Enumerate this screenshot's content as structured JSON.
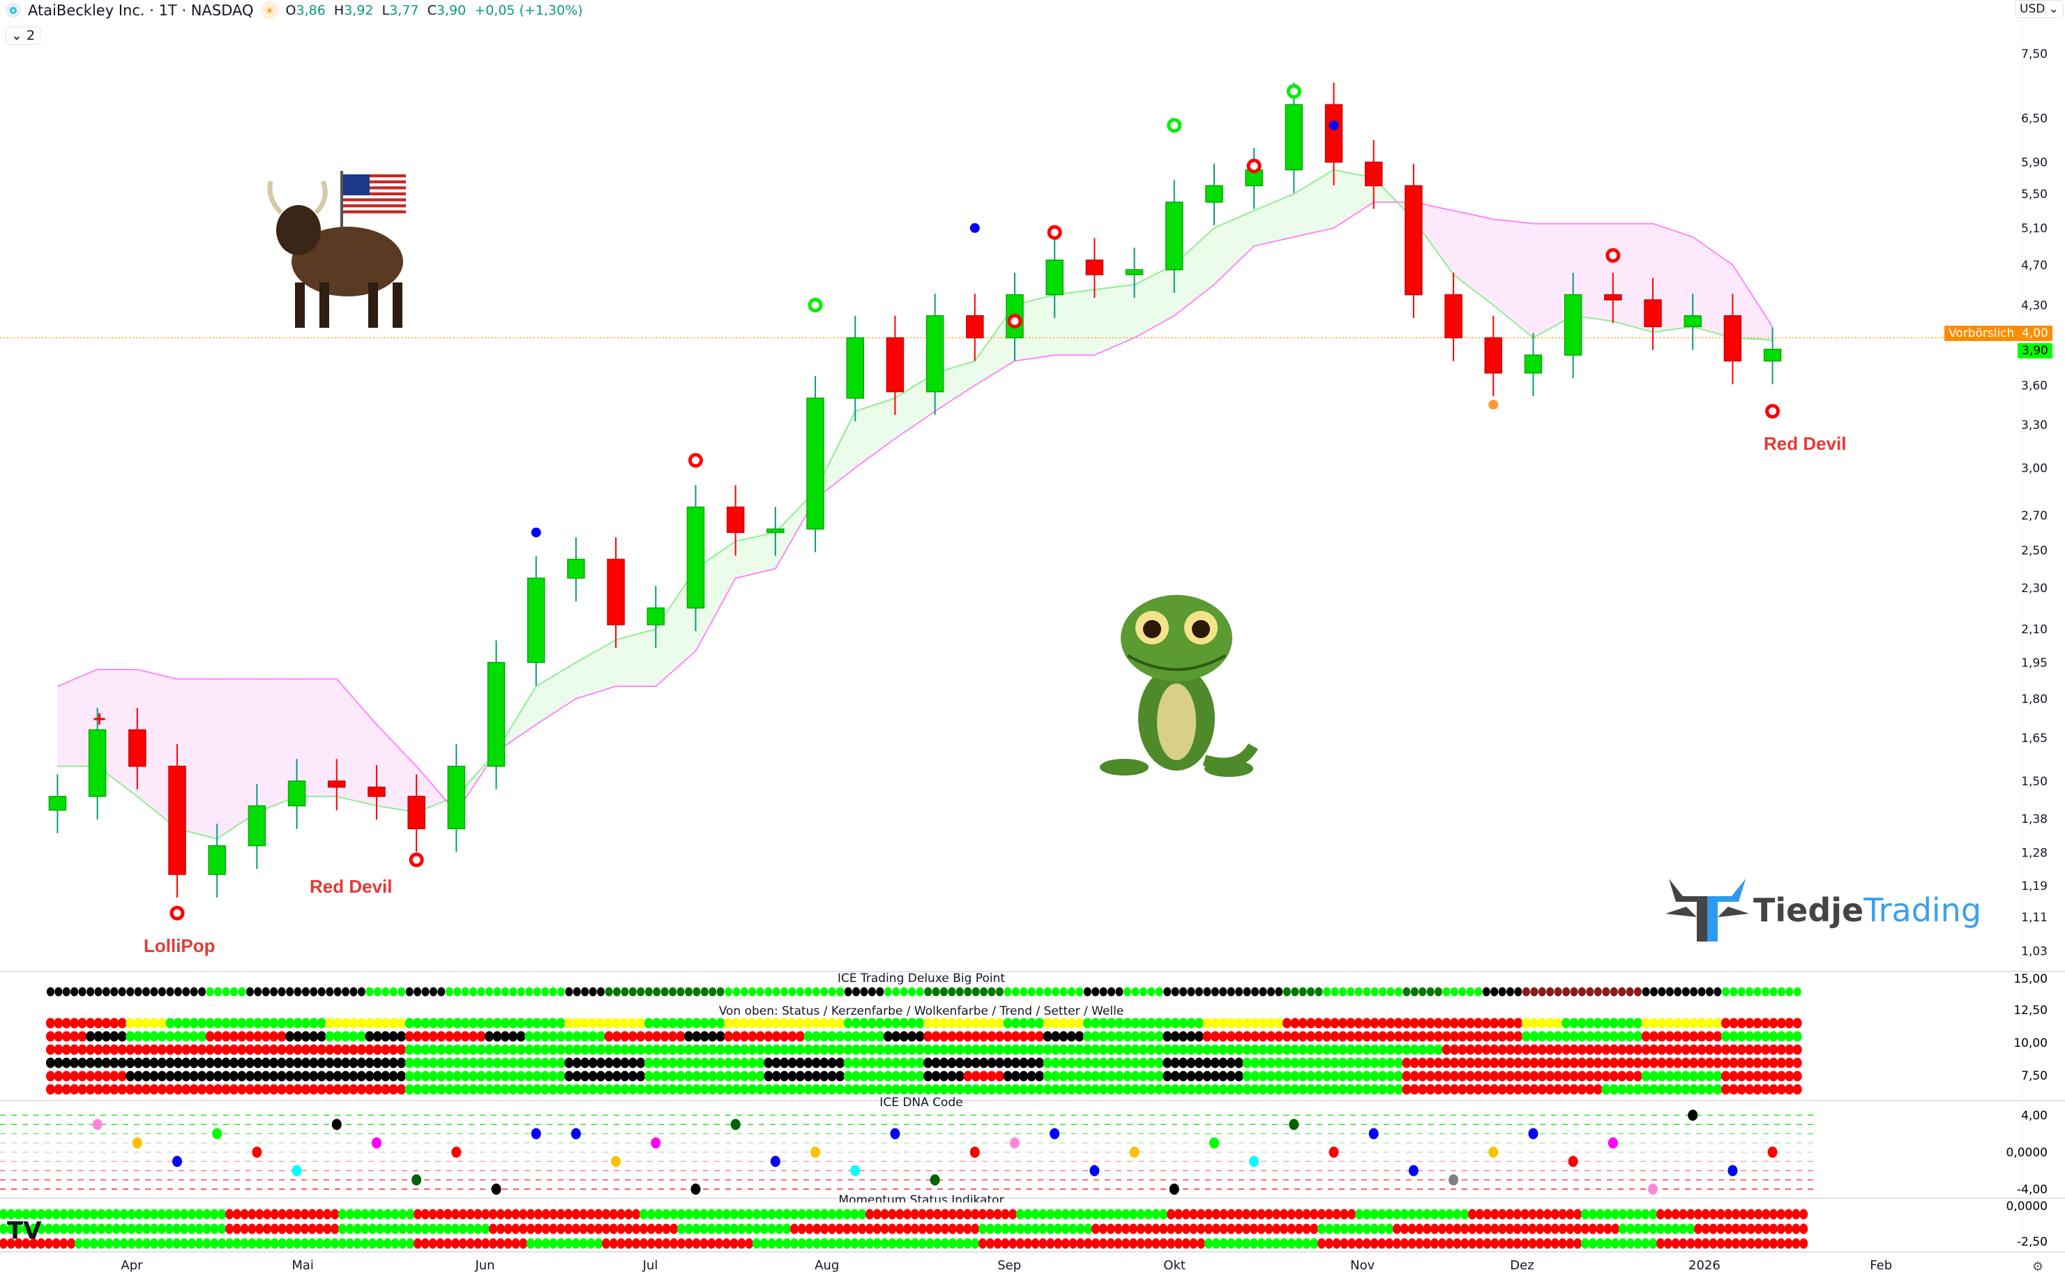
{
  "header": {
    "symbol": "AtaiBeckley Inc. · 1T · NASDAQ",
    "o_label": "O",
    "o": "3,86",
    "h_label": "H",
    "h": "3,92",
    "l_label": "L",
    "l": "3,77",
    "c_label": "C",
    "c": "3,90",
    "change": "+0,05 (+1,30%)",
    "collapse": "⌄ 2",
    "currency": "USD ⌄"
  },
  "tags": {
    "premarket_label": "Vorbörslich",
    "premarket_price": "4,00",
    "last_price": "3,90",
    "premarket_color": "#ff8c00",
    "last_color": "#00ff00"
  },
  "annotations": {
    "red_devil_1": "Red Devil",
    "red_devil_2": "Red Devil",
    "lollipop": "LolliPop"
  },
  "logo": {
    "part1": "Tiedje",
    "part2": "Trading"
  },
  "panels": {
    "big_point_title": "ICE Trading Deluxe Big Point",
    "rows_title": "Von oben: Status / Kerzenfarbe / Wolkenfarbe / Trend / Setter / Welle",
    "dna_title": "ICE DNA Code",
    "momentum_title": "Momentum Status Indikator"
  },
  "chart_data": {
    "type": "candlestick",
    "interval": "1T",
    "scale": "log",
    "y_ticks": [
      "7,50",
      "6,50",
      "5,90",
      "5,50",
      "5,10",
      "4,70",
      "4,30",
      "3,60",
      "3,30",
      "3,00",
      "2,70",
      "2,50",
      "2,30",
      "2,10",
      "1,95",
      "1,80",
      "1,65",
      "1,50",
      "1,38",
      "1,28",
      "1,19",
      "1,11",
      "1,03"
    ],
    "y_tick_values": [
      7.5,
      6.5,
      5.9,
      5.5,
      5.1,
      4.7,
      4.3,
      3.6,
      3.3,
      3.0,
      2.7,
      2.5,
      2.3,
      2.1,
      1.95,
      1.8,
      1.65,
      1.5,
      1.38,
      1.28,
      1.19,
      1.11,
      1.03
    ],
    "x_ticks": [
      {
        "label": "Apr",
        "date": "2025-04-01"
      },
      {
        "label": "Mai",
        "date": "2025-05-01"
      },
      {
        "label": "Jun",
        "date": "2025-06-02"
      },
      {
        "label": "Jul",
        "date": "2025-07-01"
      },
      {
        "label": "Aug",
        "date": "2025-08-01"
      },
      {
        "label": "Sep",
        "date": "2025-09-02"
      },
      {
        "label": "Okt",
        "date": "2025-10-01"
      },
      {
        "label": "Nov",
        "date": "2025-11-03"
      },
      {
        "label": "Dez",
        "date": "2025-12-01"
      },
      {
        "label": "2026",
        "date": "2026-01-02"
      },
      {
        "label": "Feb",
        "date": "2026-02-02"
      }
    ],
    "weeks": [
      "2025-03-17",
      "2025-03-24",
      "2025-03-31",
      "2025-04-07",
      "2025-04-14",
      "2025-04-21",
      "2025-04-28",
      "2025-05-05",
      "2025-05-12",
      "2025-05-19",
      "2025-05-26",
      "2025-06-02",
      "2025-06-09",
      "2025-06-16",
      "2025-06-23",
      "2025-06-30",
      "2025-07-07",
      "2025-07-14",
      "2025-07-21",
      "2025-07-28",
      "2025-08-04",
      "2025-08-11",
      "2025-08-18",
      "2025-08-25",
      "2025-09-01",
      "2025-09-08",
      "2025-09-15",
      "2025-09-22",
      "2025-09-29",
      "2025-10-06",
      "2025-10-13",
      "2025-10-20",
      "2025-10-27",
      "2025-11-03",
      "2025-11-10",
      "2025-11-17",
      "2025-11-24",
      "2025-12-01",
      "2025-12-08",
      "2025-12-15",
      "2025-12-22",
      "2025-12-29",
      "2026-01-05",
      "2026-01-12"
    ],
    "close": [
      1.45,
      1.68,
      1.55,
      1.22,
      1.3,
      1.42,
      1.5,
      1.48,
      1.45,
      1.35,
      1.55,
      1.95,
      2.35,
      2.45,
      2.12,
      2.2,
      2.75,
      2.6,
      2.62,
      3.5,
      4.0,
      3.55,
      4.2,
      4.0,
      4.4,
      4.75,
      4.6,
      4.65,
      5.4,
      5.6,
      5.8,
      6.7,
      5.9,
      5.6,
      4.4,
      4.0,
      3.7,
      3.85,
      4.4,
      4.35,
      4.1,
      4.2,
      3.8,
      3.9
    ],
    "cloud_span_a": [
      1.55,
      1.55,
      1.45,
      1.35,
      1.32,
      1.4,
      1.45,
      1.45,
      1.42,
      1.4,
      1.45,
      1.6,
      1.85,
      1.95,
      2.05,
      2.1,
      2.4,
      2.55,
      2.6,
      2.85,
      3.4,
      3.5,
      3.7,
      3.8,
      4.3,
      4.4,
      4.45,
      4.5,
      4.7,
      5.1,
      5.3,
      5.5,
      5.8,
      5.7,
      5.2,
      4.6,
      4.3,
      4.0,
      4.2,
      4.15,
      4.05,
      4.1,
      4.0,
      3.98
    ],
    "cloud_span_b": [
      1.85,
      1.92,
      1.92,
      1.88,
      1.88,
      1.88,
      1.88,
      1.88,
      1.7,
      1.55,
      1.4,
      1.6,
      1.7,
      1.8,
      1.85,
      1.85,
      2.0,
      2.35,
      2.4,
      2.8,
      3.0,
      3.2,
      3.4,
      3.6,
      3.8,
      3.85,
      3.85,
      4.0,
      4.2,
      4.5,
      4.9,
      5.0,
      5.1,
      5.4,
      5.4,
      5.3,
      5.2,
      5.15,
      5.15,
      5.15,
      5.15,
      5.0,
      4.7,
      4.1
    ],
    "premarket_price": 4.0,
    "signals": [
      {
        "week": "2025-03-24",
        "price": 1.72,
        "type": "red-plus"
      },
      {
        "week": "2025-04-07",
        "price": 1.12,
        "type": "red-ring"
      },
      {
        "week": "2025-05-19",
        "price": 1.26,
        "type": "red-ring"
      },
      {
        "week": "2025-06-09",
        "price": 2.6,
        "type": "blue-dot"
      },
      {
        "week": "2025-07-07",
        "price": 3.05,
        "type": "red-ring"
      },
      {
        "week": "2025-07-28",
        "price": 4.3,
        "type": "green-ring"
      },
      {
        "week": "2025-08-25",
        "price": 5.1,
        "type": "blue-dot"
      },
      {
        "week": "2025-09-01",
        "price": 4.15,
        "type": "red-ring"
      },
      {
        "week": "2025-09-08",
        "price": 5.05,
        "type": "red-ring"
      },
      {
        "week": "2025-09-29",
        "price": 6.4,
        "type": "green-ring"
      },
      {
        "week": "2025-10-13",
        "price": 5.85,
        "type": "red-ring"
      },
      {
        "week": "2025-10-20",
        "price": 6.9,
        "type": "green-ring"
      },
      {
        "week": "2025-10-27",
        "price": 6.4,
        "type": "blue-dot"
      },
      {
        "week": "2025-11-24",
        "price": 3.45,
        "type": "orange-dot"
      },
      {
        "week": "2025-12-15",
        "price": 4.8,
        "type": "red-ring"
      },
      {
        "week": "2026-01-12",
        "price": 3.4,
        "type": "red-ring"
      }
    ]
  },
  "indicators": {
    "color_codes": {
      "k": "#000000",
      "g": "#00ff00",
      "G": "#007a00",
      "R": "#8b1a1a",
      "r": "#ff0000",
      "y": "#ffff00"
    },
    "big_point": "kkkkgkkkgkgggkGGGgggkgGGggkgkkkGggGgkRRRkkgg",
    "rows": [
      "rryggggyyggggyyggyyyggyygygggyyrrrrrryggyyrr",
      "rkggrrkgkrrkggrrkrrggkrrrkggkrrrrrrrrgggrrgg",
      "rrrrrrrrrggggggggggggggggggggggggggrrrrrrrrrr",
      "kkkkkkkkkggggkkgggkkggkkkgggkkggggrrrrrrrrrr",
      "rrkkkkkkkggggkkgggkkggkrkgggkkggggrrrrrrggrr",
      "rrrrrrrrrgggggggggggggggggggggggggrrrrrgggrr"
    ],
    "right_ticks": [
      "15,00",
      "12,50",
      "10,00",
      "7,50"
    ],
    "dna_ticks": [
      "4,00",
      "0,0000",
      "-4,00"
    ],
    "dna_dots": [
      {
        "w": 1,
        "lv": 3,
        "c": "#ff88dd"
      },
      {
        "w": 2,
        "lv": 1,
        "c": "#ffc000"
      },
      {
        "w": 3,
        "lv": -1,
        "c": "#0000ff"
      },
      {
        "w": 4,
        "lv": 2,
        "c": "#00ff00"
      },
      {
        "w": 5,
        "lv": 0,
        "c": "#ff0000"
      },
      {
        "w": 6,
        "lv": -2,
        "c": "#00ffff"
      },
      {
        "w": 7,
        "lv": 3,
        "c": "#000000"
      },
      {
        "w": 8,
        "lv": 1,
        "c": "#ff00ff"
      },
      {
        "w": 9,
        "lv": -3,
        "c": "#006400"
      },
      {
        "w": 10,
        "lv": 0,
        "c": "#ff0000"
      },
      {
        "w": 11,
        "lv": -4,
        "c": "#000000"
      },
      {
        "w": 12,
        "lv": 2,
        "c": "#0000ff"
      },
      {
        "w": 13,
        "lv": 2,
        "c": "#0000ff"
      },
      {
        "w": 14,
        "lv": -1,
        "c": "#ffc000"
      },
      {
        "w": 15,
        "lv": 1,
        "c": "#ff00ff"
      },
      {
        "w": 16,
        "lv": -4,
        "c": "#000000"
      },
      {
        "w": 17,
        "lv": 3,
        "c": "#006400"
      },
      {
        "w": 18,
        "lv": -1,
        "c": "#0000ff"
      },
      {
        "w": 19,
        "lv": 0,
        "c": "#ffc000"
      },
      {
        "w": 20,
        "lv": -2,
        "c": "#00ffff"
      },
      {
        "w": 21,
        "lv": 2,
        "c": "#0000ff"
      },
      {
        "w": 22,
        "lv": -3,
        "c": "#006400"
      },
      {
        "w": 23,
        "lv": 0,
        "c": "#ff0000"
      },
      {
        "w": 24,
        "lv": 1,
        "c": "#ff88dd"
      },
      {
        "w": 25,
        "lv": 2,
        "c": "#0000ff"
      },
      {
        "w": 26,
        "lv": -2,
        "c": "#0000ff"
      },
      {
        "w": 27,
        "lv": 0,
        "c": "#ffc000"
      },
      {
        "w": 28,
        "lv": -4,
        "c": "#000000"
      },
      {
        "w": 29,
        "lv": 1,
        "c": "#00ff00"
      },
      {
        "w": 30,
        "lv": -1,
        "c": "#00ffff"
      },
      {
        "w": 31,
        "lv": 3,
        "c": "#006400"
      },
      {
        "w": 32,
        "lv": 0,
        "c": "#ff0000"
      },
      {
        "w": 33,
        "lv": 2,
        "c": "#0000ff"
      },
      {
        "w": 34,
        "lv": -2,
        "c": "#0000ff"
      },
      {
        "w": 35,
        "lv": -3,
        "c": "#808080"
      },
      {
        "w": 36,
        "lv": 0,
        "c": "#ffc000"
      },
      {
        "w": 37,
        "lv": 2,
        "c": "#0000ff"
      },
      {
        "w": 38,
        "lv": -1,
        "c": "#ff0000"
      },
      {
        "w": 39,
        "lv": 1,
        "c": "#ff00ff"
      },
      {
        "w": 40,
        "lv": -4,
        "c": "#ff88dd"
      },
      {
        "w": 41,
        "lv": 4,
        "c": "#000000"
      },
      {
        "w": 42,
        "lv": -2,
        "c": "#0000ff"
      },
      {
        "w": 43,
        "lv": 0,
        "c": "#ff0000"
      }
    ],
    "momentum_ticks": [
      "0,0000",
      "-2,50"
    ],
    "momentum": [
      "ggggggrrrggrrrrrrggggggrrrrggggrrrrrgggrrrggrrrr",
      "ggggggrrrggggrrrrrgggrrrrrgggrrrrrrggrrrrrrggrrr",
      "rrgggggggggrrrggrrrrggggggrrrrrrgggrrrrrrrggrrrr"
    ]
  }
}
